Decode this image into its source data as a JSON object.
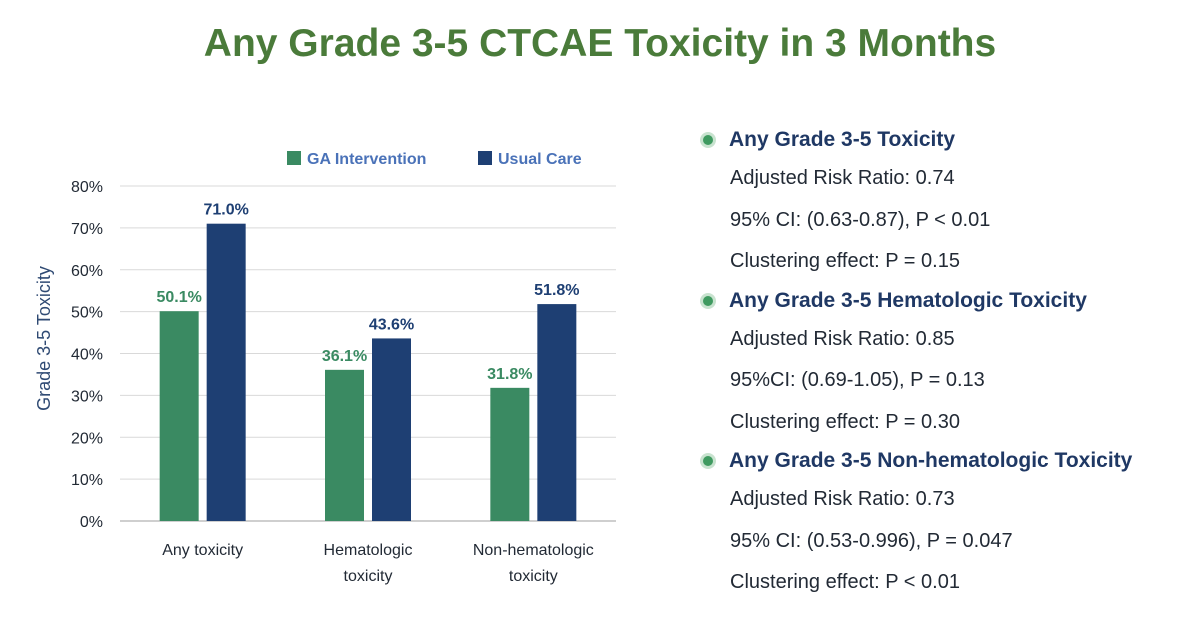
{
  "title": "Any Grade 3-5 CTCAE Toxicity in 3 Months",
  "chart_data": {
    "type": "bar",
    "title": "",
    "xlabel": "",
    "ylabel": "Grade 3-5 Toxicity",
    "ylim": [
      0,
      80
    ],
    "y_ticks": [
      "0%",
      "10%",
      "20%",
      "30%",
      "40%",
      "50%",
      "60%",
      "70%",
      "80%"
    ],
    "grid": true,
    "legend_position": "top",
    "categories": [
      [
        "Any toxicity"
      ],
      [
        "Hematologic",
        "toxicity"
      ],
      [
        "Non-hematologic",
        "toxicity"
      ]
    ],
    "series": [
      {
        "name": "GA Intervention",
        "color": "#3a8a62",
        "label_color": "#3a8a62",
        "values": [
          50.1,
          36.1,
          31.8
        ],
        "labels": [
          "50.1%",
          "36.1%",
          "31.8%"
        ]
      },
      {
        "name": "Usual Care",
        "color": "#1e3f73",
        "label_color": "#1e3f73",
        "values": [
          71.0,
          43.6,
          51.8
        ],
        "labels": [
          "71.0%",
          "43.6%",
          "51.8%"
        ]
      }
    ],
    "colors": {
      "axis_text": "#222a35",
      "ylabel": "#2f4a73",
      "legend_text": "#4a72b8",
      "grid": "#d9d9d9"
    }
  },
  "results": [
    {
      "heading": "Any Grade 3-5 Toxicity",
      "lines": [
        "Adjusted Risk Ratio: 0.74",
        "95% CI: (0.63-0.87), P < 0.01",
        "Clustering effect: P = 0.15"
      ]
    },
    {
      "heading": "Any Grade 3-5 Hematologic Toxicity",
      "lines": [
        "Adjusted Risk Ratio: 0.85",
        "95%CI: (0.69-1.05), P = 0.13",
        "Clustering effect: P = 0.30"
      ]
    },
    {
      "heading": "Any Grade 3-5 Non-hematologic Toxicity",
      "lines": [
        "Adjusted Risk Ratio: 0.73",
        "95% CI: (0.53-0.996), P = 0.047",
        "Clustering effect: P < 0.01"
      ]
    }
  ]
}
